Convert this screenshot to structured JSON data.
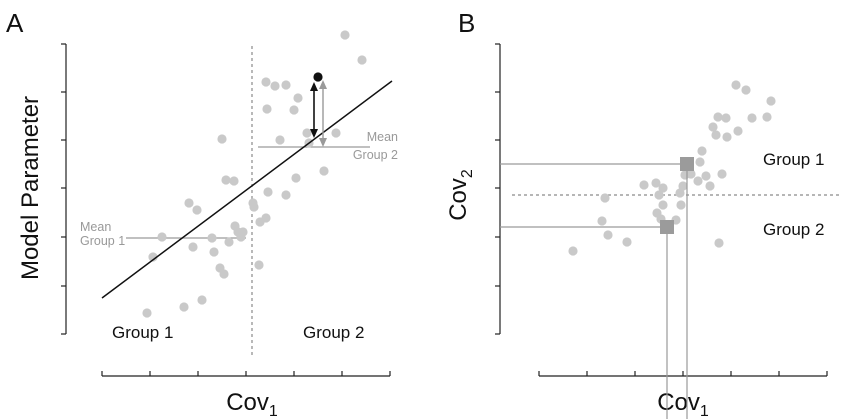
{
  "panels": {
    "a": {
      "letter": "A",
      "y_axis_label": "Model Parameter",
      "x_axis_label_main": "Cov",
      "x_axis_label_sub": "1",
      "group1_label": "Group 1",
      "group2_label": "Group 2",
      "mean_group1_line1": "Mean",
      "mean_group1_line2": "Group 1",
      "mean_group2_line1": "Mean",
      "mean_group2_line2": "Group 2"
    },
    "b": {
      "letter": "B",
      "y_axis_label_main": "Cov",
      "y_axis_label_sub": "2",
      "x_axis_label_main": "Cov",
      "x_axis_label_sub": "1",
      "group1_label": "Group 1",
      "group2_label": "Group 2"
    }
  },
  "colors": {
    "points": "#c9c9c9",
    "axes": "#222222",
    "regression_line": "#111111",
    "mean_lines": "#9a9a9a",
    "divider": "#8a8a8a",
    "highlight_point": "#111111",
    "mean_markers": "#9b9b9b"
  }
}
